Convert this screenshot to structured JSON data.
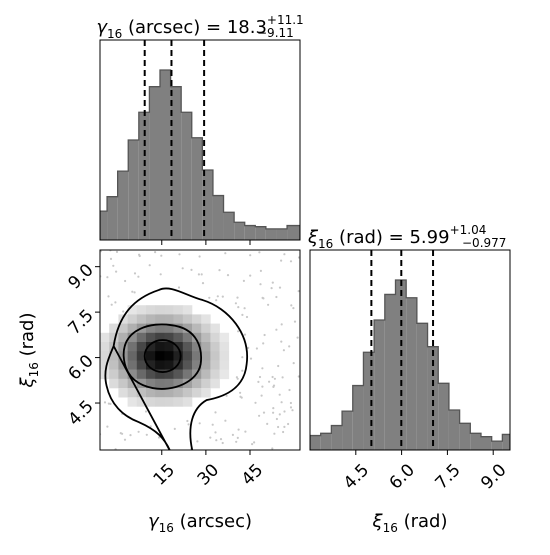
{
  "chart_data": [
    {
      "type": "histogram",
      "panel": "gamma16-marginal",
      "title": {
        "base": "γ",
        "sub": "16",
        "rest": " (arcsec) = 18.3",
        "sup": "+11.1",
        "subscript": "−9.11"
      },
      "median": 18.3,
      "quantiles": [
        9.2,
        18.3,
        29.4
      ],
      "xlim": [
        -6,
        62
      ],
      "bins": [
        [
          -6.0,
          -3.6,
          26
        ],
        [
          -3.6,
          0.0,
          39
        ],
        [
          0.0,
          3.6,
          62
        ],
        [
          3.6,
          7.2,
          90
        ],
        [
          7.2,
          10.8,
          115
        ],
        [
          10.8,
          14.4,
          138
        ],
        [
          14.4,
          18.0,
          153
        ],
        [
          18.0,
          21.6,
          138
        ],
        [
          21.6,
          25.2,
          115
        ],
        [
          25.2,
          28.8,
          92
        ],
        [
          28.8,
          32.4,
          63
        ],
        [
          32.4,
          36.0,
          40
        ],
        [
          36.0,
          39.6,
          25
        ],
        [
          39.6,
          43.2,
          16
        ],
        [
          43.2,
          46.8,
          13
        ],
        [
          46.8,
          50.4,
          12
        ],
        [
          50.4,
          54.0,
          10
        ],
        [
          54.0,
          57.6,
          10
        ],
        [
          57.6,
          62.0,
          13
        ]
      ],
      "ymax": 180
    },
    {
      "type": "histogram2d",
      "panel": "joint-density",
      "xlabel": {
        "base": "γ",
        "sub": "16",
        "rest": " (arcsec)"
      },
      "ylabel": {
        "base": "ξ",
        "sub": "16",
        "rest": " (rad)"
      },
      "xlim": [
        -6,
        62
      ],
      "ylim": [
        2.95,
        9.55
      ],
      "xticks": [
        "15",
        "30",
        "45"
      ],
      "yticks": [
        "4.5",
        "6.0",
        "7.5",
        "9.0"
      ],
      "xtick_values": [
        15,
        30,
        45
      ],
      "ytick_values": [
        4.5,
        6.0,
        7.5,
        9.0
      ],
      "peak": {
        "x": 15.3,
        "y": 6.05
      },
      "contour_levels": [
        "39.3%",
        "86.5%",
        "98.9%"
      ]
    },
    {
      "type": "histogram",
      "panel": "xi16-marginal",
      "title": {
        "base": "ξ",
        "sub": "16",
        "rest": " (rad) = 5.99",
        "sup": "+1.04",
        "subscript": "−0.977"
      },
      "xlabel": {
        "base": "ξ",
        "sub": "16",
        "rest": " (rad)"
      },
      "median": 5.99,
      "quantiles": [
        5.01,
        5.99,
        7.03
      ],
      "xlim": [
        3.0,
        9.55
      ],
      "xticks": [
        "4.5",
        "6.0",
        "7.5",
        "9.0"
      ],
      "xtick_values": [
        4.5,
        6.0,
        7.5,
        9.0
      ],
      "bins": [
        [
          3.0,
          3.35,
          13
        ],
        [
          3.35,
          3.7,
          15
        ],
        [
          3.7,
          4.05,
          22
        ],
        [
          4.05,
          4.4,
          35
        ],
        [
          4.4,
          4.75,
          58
        ],
        [
          4.75,
          5.1,
          88
        ],
        [
          5.1,
          5.45,
          117
        ],
        [
          5.45,
          5.8,
          140
        ],
        [
          5.8,
          6.15,
          153
        ],
        [
          6.15,
          6.5,
          137
        ],
        [
          6.5,
          6.85,
          114
        ],
        [
          6.85,
          7.2,
          93
        ],
        [
          7.2,
          7.55,
          60
        ],
        [
          7.55,
          7.9,
          36
        ],
        [
          7.9,
          8.25,
          24
        ],
        [
          8.25,
          8.6,
          15
        ],
        [
          8.6,
          8.95,
          12
        ],
        [
          8.95,
          9.3,
          8
        ],
        [
          9.3,
          9.55,
          14
        ]
      ],
      "ymax": 180
    }
  ]
}
